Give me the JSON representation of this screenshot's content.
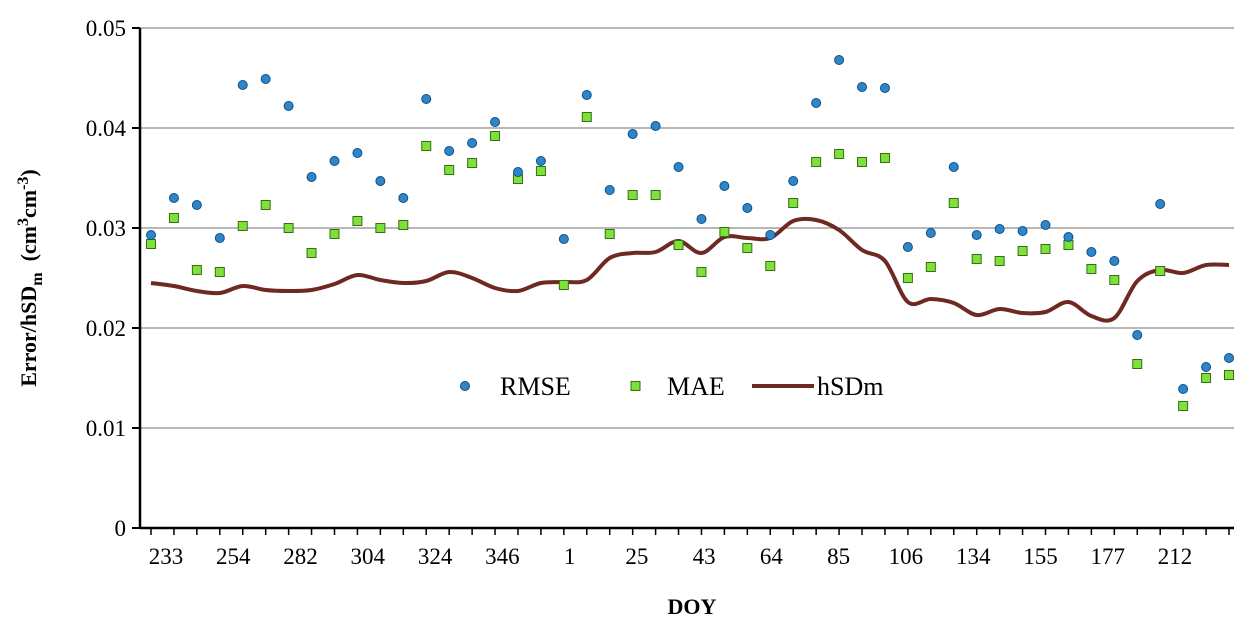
{
  "chart_data": {
    "type": "scatter",
    "xlabel": "DOY",
    "ylabel": {
      "main": "Error/hSD",
      "sub1": "m",
      "mid": "(cm",
      "sup1": "3",
      "mid2": "cm",
      "sup2": "-3",
      "end": ")"
    },
    "ylim": [
      0,
      0.05
    ],
    "yticks": [
      0,
      0.01,
      0.02,
      0.03,
      0.04,
      0.05
    ],
    "ytick_labels": [
      "0",
      "0.01",
      "0.02",
      "0.03",
      "0.04",
      "0.05"
    ],
    "xtick_labels": [
      "233",
      "254",
      "282",
      "304",
      "324",
      "346",
      "1",
      "25",
      "43",
      "64",
      "85",
      "106",
      "134",
      "155",
      "177",
      "212"
    ],
    "grid": "horizontal",
    "legend_position": "center",
    "legend": [
      "RMSE",
      "MAE",
      "hSDm"
    ],
    "colors": {
      "RMSE": "#2E86C9",
      "MAE": "#7CE13B",
      "hSDm": "#6E2A22"
    },
    "n_points": 48,
    "series": [
      {
        "name": "RMSE",
        "marker": "circle",
        "values": [
          0.0293,
          0.033,
          0.0323,
          0.029,
          0.0443,
          0.0449,
          0.0422,
          0.0351,
          0.0367,
          0.0375,
          0.0347,
          0.033,
          0.0429,
          0.0377,
          0.0385,
          0.0406,
          0.0356,
          0.0367,
          0.0289,
          0.0433,
          0.0338,
          0.0394,
          0.0402,
          0.0361,
          0.0309,
          0.0342,
          0.032,
          0.0293,
          0.0347,
          0.0425,
          0.0468,
          0.0441,
          0.044,
          0.0281,
          0.0295,
          0.0361,
          0.0293,
          0.0299,
          0.0297,
          0.0303,
          0.0291,
          0.0276,
          0.0267,
          0.0193,
          0.0324,
          0.0139,
          0.0161,
          0.017
        ]
      },
      {
        "name": "MAE",
        "marker": "square",
        "values": [
          0.0284,
          0.031,
          0.0258,
          0.0256,
          0.0302,
          0.0323,
          0.03,
          0.0275,
          0.0294,
          0.0307,
          0.03,
          0.0303,
          0.0382,
          0.0358,
          0.0365,
          0.0392,
          0.0349,
          0.0357,
          0.0243,
          0.0411,
          0.0294,
          0.0333,
          0.0333,
          0.0283,
          0.0256,
          0.0296,
          0.028,
          0.0262,
          0.0325,
          0.0366,
          0.0374,
          0.0366,
          0.037,
          0.025,
          0.0261,
          0.0325,
          0.0269,
          0.0267,
          0.0277,
          0.0279,
          0.0283,
          0.0259,
          0.0248,
          0.0164,
          0.0257,
          0.0122,
          0.015,
          0.0153
        ]
      },
      {
        "name": "hSDm",
        "type": "line",
        "values": [
          0.0245,
          0.0242,
          0.0237,
          0.0235,
          0.0242,
          0.0238,
          0.0237,
          0.0238,
          0.0244,
          0.0253,
          0.0248,
          0.0245,
          0.0247,
          0.0256,
          0.025,
          0.024,
          0.0237,
          0.0245,
          0.0246,
          0.0248,
          0.027,
          0.0275,
          0.0276,
          0.0287,
          0.0275,
          0.0291,
          0.029,
          0.029,
          0.0307,
          0.0308,
          0.0298,
          0.0278,
          0.0267,
          0.0226,
          0.0229,
          0.0225,
          0.0213,
          0.0219,
          0.0215,
          0.0216,
          0.0226,
          0.0212,
          0.021,
          0.0247,
          0.0258,
          0.0255,
          0.0263,
          0.0263
        ]
      }
    ]
  }
}
